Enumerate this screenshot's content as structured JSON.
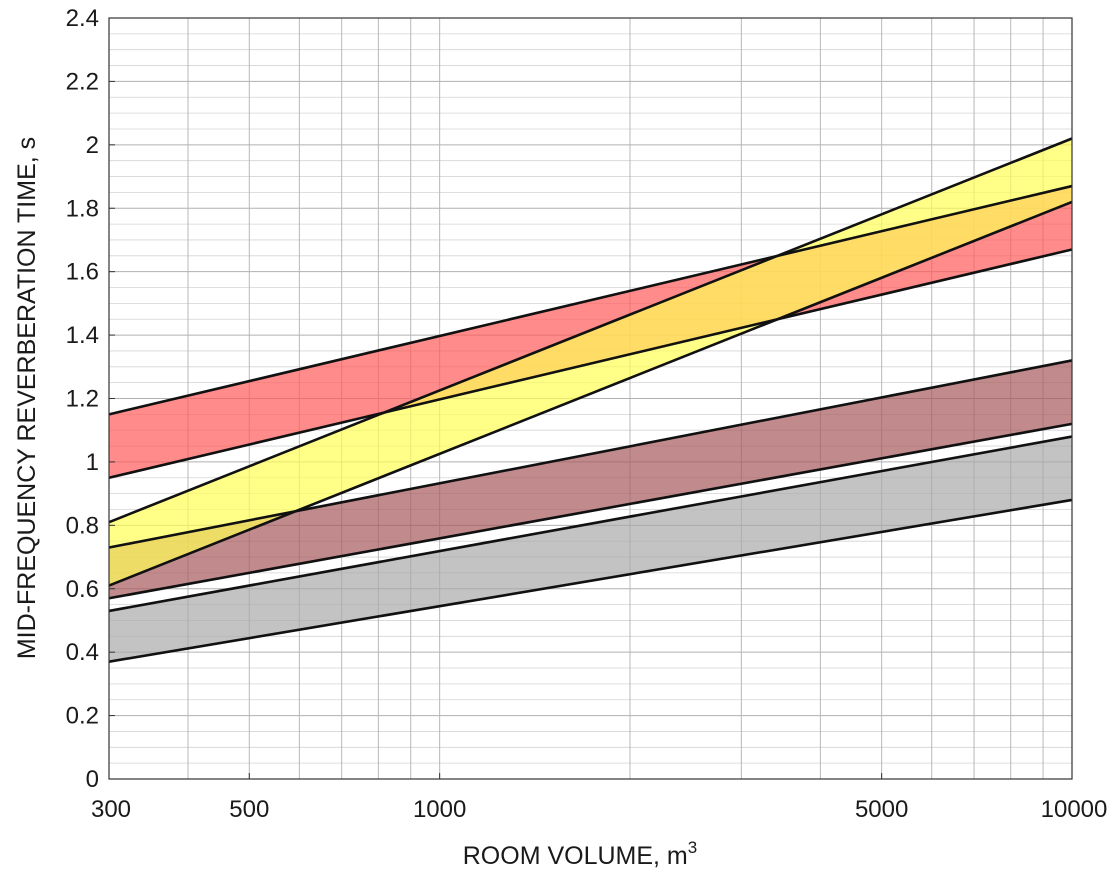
{
  "chart_data": {
    "type": "area",
    "xlabel": "ROOM VOLUME, m",
    "xlabel_superscript": "3",
    "ylabel": "MID-FREQUENCY REVERBERATION TIME, s",
    "xscale": "log",
    "xlim": [
      300,
      10000
    ],
    "ylim": [
      0,
      2.4
    ],
    "grid": true,
    "x_tick_labels": [
      "300",
      "500",
      "1000",
      "5000",
      "10000"
    ],
    "x_ticks": [
      300,
      500,
      1000,
      5000,
      10000
    ],
    "y_ticks": [
      0,
      0.2,
      0.4,
      0.6,
      0.8,
      1,
      1.2,
      1.4,
      1.6,
      1.8,
      2,
      2.2,
      2.4
    ],
    "y_tick_labels": [
      "0",
      "0.2",
      "0.4",
      "0.6",
      "0.8",
      "1",
      "1.2",
      "1.4",
      "1.6",
      "1.8",
      "2",
      "2.2",
      "2.4"
    ],
    "series": [
      {
        "color": "#a9a9a9",
        "x": [
          300,
          10000
        ],
        "lower": [
          0.37,
          0.88
        ],
        "upper": [
          0.53,
          1.08
        ]
      },
      {
        "color": "#a65a5e",
        "x": [
          300,
          10000
        ],
        "lower": [
          0.57,
          1.12
        ],
        "upper": [
          0.73,
          1.32
        ]
      },
      {
        "color": "#ff5a5a",
        "x": [
          300,
          10000
        ],
        "lower": [
          0.95,
          1.67
        ],
        "upper": [
          1.15,
          1.87
        ]
      },
      {
        "color": "#ffff55",
        "x": [
          300,
          10000
        ],
        "lower": [
          0.61,
          1.82
        ],
        "upper": [
          0.81,
          2.02
        ]
      }
    ]
  }
}
